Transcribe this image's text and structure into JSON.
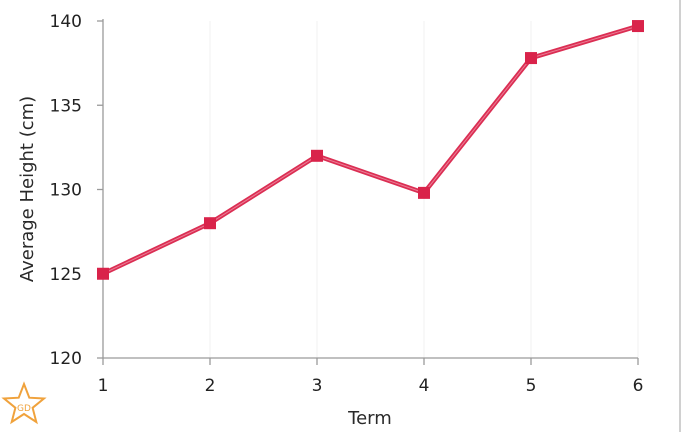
{
  "chart_data": {
    "type": "line",
    "x": [
      1,
      2,
      3,
      4,
      5,
      6
    ],
    "series": [
      {
        "values": [
          125,
          128,
          132,
          129.8,
          137.8,
          139.7
        ],
        "color": "#d9234a",
        "marker": "square"
      }
    ],
    "xlabel": "Term",
    "ylabel": "Average Height (cm)",
    "xlim": [
      1,
      6
    ],
    "ylim": [
      120,
      140
    ],
    "x_ticks": [
      "1",
      "2",
      "3",
      "4",
      "5",
      "6"
    ],
    "y_ticks": [
      "120",
      "125",
      "130",
      "135",
      "140"
    ],
    "grid": "vertical",
    "legend": "none"
  },
  "logo": {
    "text": "GD",
    "icon": "star-logo-icon",
    "color": "#f0a23c"
  }
}
